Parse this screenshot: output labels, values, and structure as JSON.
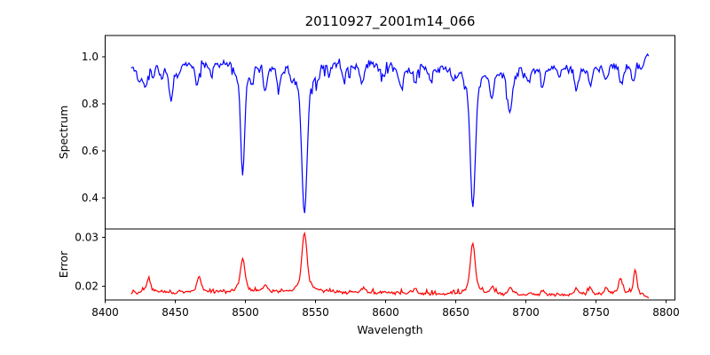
{
  "title": "20110927_2001m14_066",
  "xlabel": "Wavelength",
  "panels": {
    "top_ylabel": "Spectrum",
    "bottom_ylabel": "Error"
  },
  "axes": {
    "xticks": [
      8400,
      8450,
      8500,
      8550,
      8600,
      8650,
      8700,
      8750,
      8800
    ],
    "frame_color": "#000000",
    "background": "#ffffff"
  },
  "chart_data": [
    {
      "type": "line",
      "name": "spectrum",
      "title": "20110927_2001m14_066",
      "ylabel": "Spectrum",
      "color": "#0000ff",
      "x_range": [
        8418.5,
        8788
      ],
      "xlim": [
        8400,
        8806.3
      ],
      "ylim": [
        0.268,
        1.0905
      ],
      "yticks": [
        0.4,
        0.6,
        0.8,
        1.0
      ],
      "grid": false,
      "legend": "none",
      "continuum": 0.962,
      "noise_amplitude": 0.045,
      "end_rise_start": 8783,
      "end_rise_rate": 0.009,
      "strong_line_minima": [
        {
          "center": 8498,
          "min_value": 0.49
        },
        {
          "center": 8542,
          "min_value": 0.33
        },
        {
          "center": 8662,
          "min_value": 0.37
        }
      ],
      "absorption_lines": [
        {
          "center": 8424.0,
          "depth": 0.055,
          "width": 1.2
        },
        {
          "center": 8428.5,
          "depth": 0.105,
          "width": 1.3
        },
        {
          "center": 8434.0,
          "depth": 0.045,
          "width": 1.1
        },
        {
          "center": 8440.0,
          "depth": 0.06,
          "width": 1.2
        },
        {
          "center": 8447.0,
          "depth": 0.16,
          "width": 1.4
        },
        {
          "center": 8452.0,
          "depth": 0.05,
          "width": 1.1
        },
        {
          "center": 8465.5,
          "depth": 0.095,
          "width": 1.3
        },
        {
          "center": 8476.0,
          "depth": 0.05,
          "width": 1.2
        },
        {
          "center": 8498.02,
          "depth": 0.49,
          "width": 1.35
        },
        {
          "center": 8505.0,
          "depth": 0.06,
          "width": 1.1
        },
        {
          "center": 8514.0,
          "depth": 0.115,
          "width": 1.4
        },
        {
          "center": 8524.0,
          "depth": 0.1,
          "width": 1.3
        },
        {
          "center": 8533.0,
          "depth": 0.05,
          "width": 1.2
        },
        {
          "center": 8542.09,
          "depth": 0.655,
          "width": 1.8
        },
        {
          "center": 8552.0,
          "depth": 0.045,
          "width": 1.1
        },
        {
          "center": 8560.0,
          "depth": 0.045,
          "width": 1.1
        },
        {
          "center": 8570.0,
          "depth": 0.055,
          "width": 1.2
        },
        {
          "center": 8583.0,
          "depth": 0.085,
          "width": 1.4
        },
        {
          "center": 8598.0,
          "depth": 0.055,
          "width": 1.2
        },
        {
          "center": 8611.0,
          "depth": 0.09,
          "width": 1.4
        },
        {
          "center": 8621.0,
          "depth": 0.085,
          "width": 1.3
        },
        {
          "center": 8632.0,
          "depth": 0.045,
          "width": 1.1
        },
        {
          "center": 8648.0,
          "depth": 0.05,
          "width": 1.2
        },
        {
          "center": 8662.14,
          "depth": 0.618,
          "width": 1.7
        },
        {
          "center": 8675.8,
          "depth": 0.13,
          "width": 1.3
        },
        {
          "center": 8688.6,
          "depth": 0.195,
          "width": 1.5
        },
        {
          "center": 8702.0,
          "depth": 0.05,
          "width": 1.2
        },
        {
          "center": 8712.0,
          "depth": 0.08,
          "width": 1.3
        },
        {
          "center": 8724.0,
          "depth": 0.05,
          "width": 1.2
        },
        {
          "center": 8736.0,
          "depth": 0.105,
          "width": 1.4
        },
        {
          "center": 8746.0,
          "depth": 0.09,
          "width": 1.3
        },
        {
          "center": 8757.0,
          "depth": 0.065,
          "width": 1.2
        },
        {
          "center": 8768.0,
          "depth": 0.085,
          "width": 1.3
        },
        {
          "center": 8776.5,
          "depth": 0.075,
          "width": 1.2
        }
      ]
    },
    {
      "type": "line",
      "name": "error",
      "ylabel": "Error",
      "color": "#ff0000",
      "x_range": [
        8418.5,
        8788
      ],
      "xlim": [
        8400,
        8806.3
      ],
      "ylim": [
        0.0172,
        0.0317
      ],
      "yticks": [
        0.02,
        0.03
      ],
      "grid": false,
      "legend": "none",
      "baseline": 0.0186,
      "noise_amplitude": 0.0009,
      "end_fall_start": 8780,
      "end_fall_rate": 0.00012,
      "peaks": [
        {
          "center": 8431.0,
          "height": 0.0031,
          "width": 1.3
        },
        {
          "center": 8467.0,
          "height": 0.0034,
          "width": 1.3
        },
        {
          "center": 8498.02,
          "height": 0.0066,
          "width": 1.5
        },
        {
          "center": 8514.0,
          "height": 0.0016,
          "width": 1.2
        },
        {
          "center": 8542.09,
          "height": 0.012,
          "width": 1.7
        },
        {
          "center": 8584.0,
          "height": 0.0009,
          "width": 1.2
        },
        {
          "center": 8621.0,
          "height": 0.001,
          "width": 1.2
        },
        {
          "center": 8662.14,
          "height": 0.0103,
          "width": 1.6
        },
        {
          "center": 8676.0,
          "height": 0.0018,
          "width": 1.2
        },
        {
          "center": 8689.0,
          "height": 0.0015,
          "width": 1.2
        },
        {
          "center": 8712.0,
          "height": 0.0008,
          "width": 1.2
        },
        {
          "center": 8736.0,
          "height": 0.0011,
          "width": 1.2
        },
        {
          "center": 8746.0,
          "height": 0.0016,
          "width": 1.2
        },
        {
          "center": 8757.0,
          "height": 0.0012,
          "width": 1.2
        },
        {
          "center": 8767.5,
          "height": 0.0036,
          "width": 1.1
        },
        {
          "center": 8778.0,
          "height": 0.0048,
          "width": 1.1
        }
      ]
    }
  ]
}
